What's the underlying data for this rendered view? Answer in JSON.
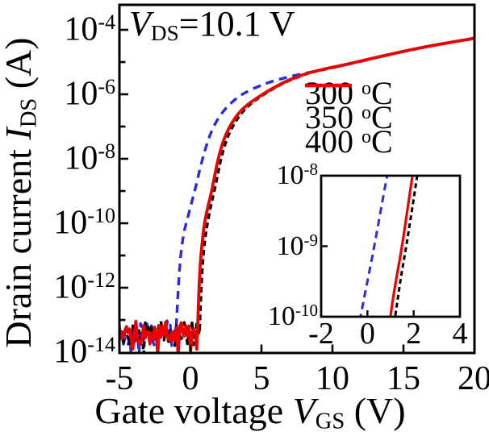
{
  "chart_data": {
    "type": "line",
    "description": "Semi-log transfer characteristics of transistors annealed at different temperatures",
    "annotation": {
      "var": "V",
      "sub": "DS",
      "rest": "=10.1 V"
    },
    "xlabel": {
      "pre": "Gate voltage ",
      "var": "V",
      "sub": "GS",
      "post": " (V)"
    },
    "ylabel": {
      "pre": "Drain current ",
      "var": "I",
      "sub": "DS",
      "post": " (A)"
    },
    "xlim": [
      -5,
      20
    ],
    "ylim_log10": [
      -14,
      -4
    ],
    "grid": false,
    "xticks": [
      -5,
      0,
      5,
      10,
      15,
      20
    ],
    "yticks_labeled_exp": [
      -4,
      -6,
      -8,
      -10,
      -12,
      -14
    ],
    "yticks_minor_exp": [
      -5,
      -7,
      -9,
      -11,
      -13
    ],
    "ytick_base": "10",
    "legend_position": "middle-right",
    "series": [
      {
        "id": "300C",
        "legend": {
          "label": "300",
          "deg": "o",
          "unit": "C"
        },
        "color": "#2b2be0",
        "style": "dashed",
        "dash": [
          10,
          7
        ],
        "legend_dash": [
          11,
          8
        ],
        "width": 3.4,
        "noise": {
          "v_start": -5.05,
          "v_end": -1.0,
          "seed": 101,
          "level_log10": -13.45,
          "amp": 0.5
        },
        "points": [
          [
            -1.0,
            -13.2
          ],
          [
            -0.88,
            -12.2
          ],
          [
            -0.72,
            -11.1
          ],
          [
            -0.5,
            -10.35
          ],
          [
            -0.3,
            -10
          ],
          [
            0.0,
            -9.5
          ],
          [
            0.3,
            -9
          ],
          [
            0.57,
            -8.5
          ],
          [
            0.85,
            -8
          ],
          [
            1.15,
            -7.55
          ],
          [
            1.5,
            -7.12
          ],
          [
            1.9,
            -6.78
          ],
          [
            2.35,
            -6.5
          ],
          [
            2.85,
            -6.27
          ],
          [
            3.4,
            -6.07
          ],
          [
            4.0,
            -5.91
          ],
          [
            4.7,
            -5.77
          ],
          [
            5.4,
            -5.65
          ],
          [
            6.2,
            -5.54
          ],
          [
            7.0,
            -5.45
          ],
          [
            7.8,
            -5.37
          ],
          [
            8.6,
            -5.3
          ],
          [
            9.4,
            -5.23
          ],
          [
            10.2,
            -5.16
          ],
          [
            11.0,
            -5.08
          ],
          [
            12.0,
            -4.98
          ],
          [
            13.0,
            -4.87
          ],
          [
            14.0,
            -4.77
          ],
          [
            15.0,
            -4.67
          ],
          [
            16.0,
            -4.58
          ],
          [
            17.0,
            -4.49
          ],
          [
            18.0,
            -4.41
          ],
          [
            19.0,
            -4.34
          ],
          [
            20.0,
            -4.27
          ]
        ]
      },
      {
        "id": "350C",
        "legend": {
          "label": "350",
          "deg": "o",
          "unit": "C"
        },
        "color": "#000000",
        "style": "dashed",
        "dash": [
          7,
          4.5
        ],
        "legend_dash": [
          7.5,
          4.5
        ],
        "width": 3.4,
        "noise": {
          "v_start": -5.05,
          "v_end": 0.65,
          "seed": 202,
          "level_log10": -13.45,
          "amp": 0.5
        },
        "points": [
          [
            0.65,
            -13.3
          ],
          [
            0.74,
            -12.2
          ],
          [
            0.86,
            -11.2
          ],
          [
            1.02,
            -10.5
          ],
          [
            1.2,
            -10
          ],
          [
            1.44,
            -9.45
          ],
          [
            1.68,
            -9
          ],
          [
            1.92,
            -8.5
          ],
          [
            2.15,
            -8
          ],
          [
            2.5,
            -7.45
          ],
          [
            2.9,
            -7.05
          ],
          [
            3.35,
            -6.72
          ],
          [
            3.85,
            -6.45
          ],
          [
            4.4,
            -6.24
          ],
          [
            5.0,
            -6.05
          ],
          [
            5.65,
            -5.87
          ],
          [
            6.3,
            -5.71
          ],
          [
            7.0,
            -5.56
          ],
          [
            7.7,
            -5.44
          ],
          [
            8.4,
            -5.33
          ],
          [
            9.2,
            -5.25
          ],
          [
            10.0,
            -5.17
          ],
          [
            10.8,
            -5.09
          ],
          [
            11.7,
            -5.0
          ],
          [
            12.7,
            -4.9
          ],
          [
            13.7,
            -4.8
          ],
          [
            14.7,
            -4.7
          ],
          [
            15.7,
            -4.61
          ],
          [
            16.7,
            -4.52
          ],
          [
            17.7,
            -4.44
          ],
          [
            18.6,
            -4.37
          ],
          [
            19.4,
            -4.31
          ],
          [
            20.0,
            -4.265
          ]
        ]
      },
      {
        "id": "400C",
        "legend": {
          "label": "400",
          "deg": "o",
          "unit": "C"
        },
        "color": "#ee0000",
        "style": "solid",
        "dash": [],
        "legend_dash": [],
        "width": 3.8,
        "noise": {
          "v_start": -5.05,
          "v_end": 0.5,
          "seed": 303,
          "level_log10": -13.45,
          "amp": 0.5
        },
        "points": [
          [
            0.5,
            -13.35
          ],
          [
            0.58,
            -12.2
          ],
          [
            0.7,
            -11.2
          ],
          [
            0.85,
            -10.5
          ],
          [
            0.98,
            -10
          ],
          [
            1.25,
            -9.45
          ],
          [
            1.5,
            -9
          ],
          [
            1.72,
            -8.5
          ],
          [
            1.95,
            -8
          ],
          [
            2.3,
            -7.45
          ],
          [
            2.7,
            -7.05
          ],
          [
            3.15,
            -6.72
          ],
          [
            3.65,
            -6.46
          ],
          [
            4.2,
            -6.26
          ],
          [
            4.8,
            -6.08
          ],
          [
            5.45,
            -5.9
          ],
          [
            6.1,
            -5.74
          ],
          [
            6.8,
            -5.58
          ],
          [
            7.5,
            -5.46
          ],
          [
            8.2,
            -5.35
          ],
          [
            9.0,
            -5.26
          ],
          [
            9.8,
            -5.18
          ],
          [
            10.6,
            -5.11
          ],
          [
            11.5,
            -5.02
          ],
          [
            12.5,
            -4.915
          ],
          [
            13.5,
            -4.815
          ],
          [
            14.5,
            -4.715
          ],
          [
            15.5,
            -4.62
          ],
          [
            16.5,
            -4.53
          ],
          [
            17.5,
            -4.45
          ],
          [
            18.5,
            -4.375
          ],
          [
            19.3,
            -4.315
          ],
          [
            20.0,
            -4.26
          ]
        ]
      }
    ],
    "inset": {
      "xlim": [
        -2,
        4
      ],
      "ylim_log10": [
        -10,
        -8
      ],
      "xticks": [
        -2,
        0,
        2,
        4
      ],
      "xticks_marked": [
        0,
        2
      ],
      "yticks_labeled_exp": [
        -8,
        -9,
        -10
      ],
      "yticks_marked_exp": [
        -9
      ],
      "ytick_base": "10",
      "series": [
        {
          "id": "300C",
          "color": "#2b2be0",
          "dash": [
            9,
            6
          ],
          "width": 3,
          "points": [
            [
              -0.52,
              -10.4
            ],
            [
              -0.3,
              -10
            ],
            [
              0.0,
              -9.5
            ],
            [
              0.3,
              -9
            ],
            [
              0.57,
              -8.5
            ],
            [
              0.85,
              -8
            ],
            [
              1.02,
              -7.72
            ]
          ]
        },
        {
          "id": "400C",
          "color": "#ee0000",
          "dash": [],
          "width": 3.2,
          "points": [
            [
              0.82,
              -10.55
            ],
            [
              0.98,
              -10
            ],
            [
              1.25,
              -9.45
            ],
            [
              1.5,
              -9
            ],
            [
              1.72,
              -8.5
            ],
            [
              1.95,
              -8
            ],
            [
              2.06,
              -7.75
            ]
          ]
        },
        {
          "id": "350C",
          "color": "#000000",
          "dash": [
            6,
            4
          ],
          "width": 3,
          "points": [
            [
              0.95,
              -10.55
            ],
            [
              1.2,
              -10
            ],
            [
              1.44,
              -9.45
            ],
            [
              1.68,
              -9
            ],
            [
              1.92,
              -8.5
            ],
            [
              2.15,
              -8
            ],
            [
              2.27,
              -7.75
            ]
          ]
        }
      ]
    },
    "colors": {
      "axis": "#000000",
      "background": "#ffffff"
    }
  }
}
